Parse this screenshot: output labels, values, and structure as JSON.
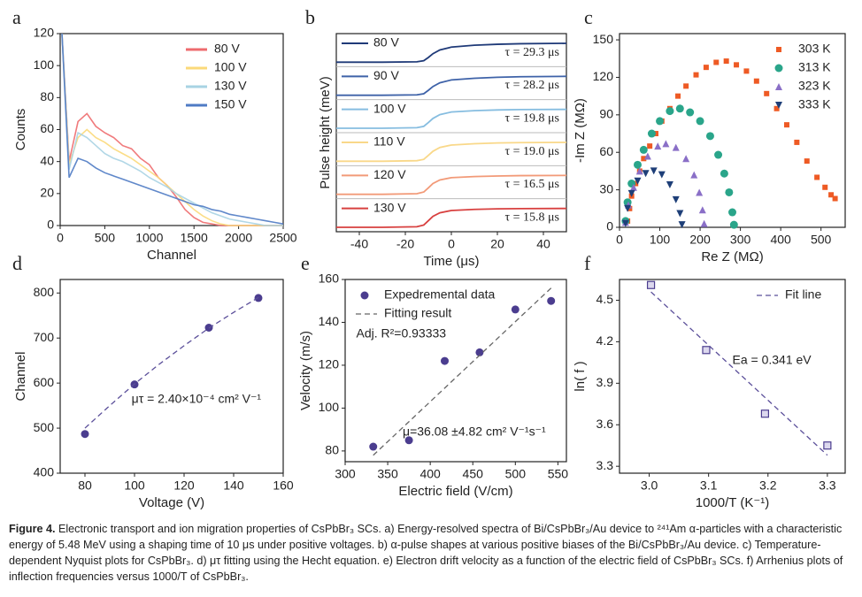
{
  "chart_data": [
    {
      "type": "line",
      "panel": "a",
      "xlabel": "Channel",
      "ylabel": "Counts",
      "x": [
        20,
        100,
        200,
        300,
        400,
        500,
        600,
        700,
        800,
        900,
        1000,
        1100,
        1200,
        1300,
        1400,
        1500,
        1600,
        1700,
        1800,
        1900,
        2000,
        2100,
        2200,
        2300,
        2400,
        2500
      ],
      "xlim": [
        0,
        2500
      ],
      "xticks": [
        0,
        500,
        1000,
        1500,
        2000,
        2500
      ],
      "ylim": [
        0,
        120
      ],
      "yticks": [
        0,
        20,
        40,
        60,
        80,
        100,
        120
      ],
      "legend": "upper right",
      "series": [
        {
          "name": "80 V",
          "color": "#ee6b6e",
          "values": [
            120,
            40,
            65,
            70,
            62,
            58,
            55,
            50,
            48,
            42,
            38,
            30,
            25,
            18,
            10,
            5,
            2,
            1,
            0,
            0,
            0,
            0,
            0,
            0,
            0,
            0
          ]
        },
        {
          "name": "100 V",
          "color": "#fbd97a",
          "values": [
            120,
            38,
            55,
            60,
            55,
            52,
            48,
            45,
            42,
            38,
            34,
            30,
            25,
            20,
            15,
            10,
            6,
            3,
            1,
            0,
            0,
            0,
            0,
            0,
            0,
            0
          ]
        },
        {
          "name": "130 V",
          "color": "#a8d3e3",
          "values": [
            120,
            35,
            58,
            55,
            50,
            45,
            42,
            40,
            37,
            34,
            30,
            27,
            24,
            20,
            17,
            14,
            11,
            8,
            6,
            4,
            3,
            2,
            1,
            0,
            0,
            0
          ]
        },
        {
          "name": "150 V",
          "color": "#4f7bc4",
          "values": [
            120,
            30,
            42,
            40,
            36,
            33,
            31,
            29,
            27,
            25,
            23,
            21,
            19,
            17,
            15,
            13,
            12,
            10,
            9,
            7,
            6,
            5,
            4,
            3,
            2,
            1
          ]
        }
      ]
    },
    {
      "type": "stacked",
      "panel": "b",
      "xlabel": "Time (μs)",
      "ylabel": "Pulse height (meV)",
      "x": [
        -50,
        -30,
        -15,
        -12,
        -10,
        -8,
        -5,
        0,
        10,
        20,
        30,
        50
      ],
      "xlim": [
        -50,
        50
      ],
      "xticks": [
        -40,
        -20,
        0,
        20,
        40
      ],
      "series": [
        {
          "name": "80 V",
          "label": "τ = 29.3 μs",
          "color": "#1f3a78",
          "values": [
            0,
            0,
            0.02,
            0.08,
            0.25,
            0.45,
            0.65,
            0.8,
            0.9,
            0.95,
            0.98,
            1
          ]
        },
        {
          "name": "90 V",
          "label": "τ = 28.2 μs",
          "color": "#3e62a8",
          "values": [
            0,
            0,
            0.02,
            0.08,
            0.26,
            0.46,
            0.66,
            0.81,
            0.9,
            0.95,
            0.98,
            1
          ]
        },
        {
          "name": "100 V",
          "label": "τ = 19.8 μs",
          "color": "#86bde0",
          "values": [
            0,
            0,
            0.03,
            0.1,
            0.3,
            0.52,
            0.72,
            0.86,
            0.93,
            0.97,
            0.99,
            1
          ]
        },
        {
          "name": "110 V",
          "label": "τ = 19.0 μs",
          "color": "#f9d889",
          "values": [
            0,
            0,
            0.03,
            0.1,
            0.31,
            0.53,
            0.73,
            0.86,
            0.93,
            0.97,
            0.99,
            1
          ]
        },
        {
          "name": "120 V",
          "label": "τ = 16.5 μs",
          "color": "#f29a78",
          "values": [
            0,
            0,
            0.03,
            0.12,
            0.34,
            0.57,
            0.76,
            0.88,
            0.94,
            0.97,
            0.99,
            1
          ]
        },
        {
          "name": "130 V",
          "label": "τ = 15.8 μs",
          "color": "#d8403f",
          "values": [
            0,
            0,
            0.03,
            0.12,
            0.35,
            0.58,
            0.77,
            0.89,
            0.95,
            0.98,
            0.99,
            1
          ]
        }
      ]
    },
    {
      "type": "scatter",
      "panel": "c",
      "xlabel": "Re Z (MΩ)",
      "ylabel": "-Im Z (MΩ)",
      "xlim": [
        0,
        560
      ],
      "xticks": [
        0,
        100,
        200,
        300,
        400,
        500
      ],
      "ylim": [
        0,
        155
      ],
      "yticks": [
        0,
        30,
        60,
        90,
        120,
        150
      ],
      "legend": "upper right",
      "series": [
        {
          "name": "303 K",
          "color": "#ee5a24",
          "marker": "square",
          "x": [
            20,
            25,
            30,
            40,
            50,
            60,
            75,
            90,
            105,
            125,
            145,
            165,
            190,
            215,
            240,
            265,
            290,
            315,
            340,
            365,
            390,
            415,
            440,
            465,
            490,
            510,
            525,
            535
          ],
          "values": [
            5,
            15,
            25,
            35,
            45,
            55,
            65,
            75,
            85,
            95,
            105,
            113,
            122,
            128,
            132,
            133,
            130,
            125,
            117,
            107,
            95,
            82,
            68,
            53,
            40,
            32,
            26,
            23
          ]
        },
        {
          "name": "313 K",
          "color": "#2aa58a",
          "marker": "circle",
          "x": [
            15,
            20,
            30,
            45,
            60,
            80,
            100,
            125,
            150,
            175,
            200,
            225,
            245,
            260,
            272,
            280,
            284
          ],
          "values": [
            5,
            20,
            35,
            50,
            62,
            75,
            85,
            93,
            95,
            92,
            85,
            73,
            58,
            43,
            28,
            12,
            2
          ]
        },
        {
          "name": "323 K",
          "color": "#8a6fc7",
          "marker": "triangle",
          "x": [
            15,
            22,
            35,
            50,
            70,
            95,
            115,
            140,
            165,
            185,
            198,
            206,
            210
          ],
          "values": [
            4,
            18,
            32,
            45,
            57,
            65,
            67,
            64,
            55,
            42,
            28,
            14,
            3
          ]
        },
        {
          "name": "333 K",
          "color": "#1e3f78",
          "marker": "triangle-down",
          "x": [
            15,
            20,
            30,
            45,
            65,
            85,
            105,
            125,
            140,
            150,
            155
          ],
          "values": [
            3,
            15,
            27,
            37,
            43,
            45,
            42,
            34,
            22,
            11,
            2
          ]
        }
      ]
    },
    {
      "type": "scatter",
      "panel": "d",
      "xlabel": "Voltage (V)",
      "ylabel": "Channel",
      "xlim": [
        70,
        160
      ],
      "xticks": [
        80,
        100,
        120,
        140,
        160
      ],
      "ylim": [
        400,
        830
      ],
      "yticks": [
        400,
        500,
        600,
        700,
        800
      ],
      "annotations": [
        "μτ = 2.40×10⁻⁴ cm² V⁻¹"
      ],
      "series": [
        {
          "color": "#4b3d8f",
          "marker": "circle",
          "x": [
            80,
            100,
            130,
            150
          ],
          "values": [
            487,
            597,
            723,
            789
          ]
        },
        {
          "color": "#5b4f9a",
          "line": "dashed",
          "x": [
            80,
            90,
            100,
            110,
            120,
            130,
            140,
            150
          ],
          "values": [
            500,
            550,
            598,
            642,
            683,
            722,
            757,
            790
          ]
        }
      ]
    },
    {
      "type": "scatter",
      "panel": "e",
      "xlabel": "Electric field (V/cm)",
      "ylabel": "Velocity (m/s)",
      "xlim": [
        300,
        560
      ],
      "xticks": [
        300,
        350,
        400,
        450,
        500,
        550
      ],
      "ylim": [
        75,
        160
      ],
      "yticks": [
        80,
        100,
        120,
        140,
        160
      ],
      "legend": "upper left",
      "annotations": [
        "Adj. R²=0.93333",
        "μ=36.08 ±4.82 cm² V⁻¹s⁻¹"
      ],
      "series": [
        {
          "name": "Expedremental data",
          "color": "#4b3d8f",
          "marker": "circle",
          "x": [
            333,
            375,
            417,
            458,
            500,
            542
          ],
          "values": [
            82,
            85,
            122,
            126,
            146,
            150
          ]
        },
        {
          "name": "Fitting result",
          "color": "#666666",
          "line": "dashed",
          "x": [
            333,
            542
          ],
          "values": [
            78,
            156
          ]
        }
      ]
    },
    {
      "type": "scatter",
      "panel": "f",
      "xlabel": "1000/T (K⁻¹)",
      "ylabel": "ln( f )",
      "xlim": [
        2.95,
        3.33
      ],
      "xticks": [
        {
          "value": 3,
          "label": "3.0"
        },
        3.1,
        3.2,
        3.3
      ],
      "ylim": [
        3.25,
        4.65
      ],
      "yticks": [
        3.3,
        3.6,
        3.9,
        4.2,
        4.5
      ],
      "legend": "upper right",
      "annotations": [
        "Ea = 0.341 eV"
      ],
      "series": [
        {
          "color": "#4b3d8f",
          "marker": "square-open",
          "x": [
            3.003,
            3.096,
            3.195,
            3.3
          ],
          "values": [
            4.61,
            4.14,
            3.68,
            3.45
          ]
        },
        {
          "name": "Fit line",
          "color": "#5b4f9a",
          "line": "dashed",
          "x": [
            3.003,
            3.3
          ],
          "values": [
            4.56,
            3.38
          ]
        }
      ]
    }
  ],
  "caption": {
    "label": "Figure 4.",
    "text": "Electronic transport and ion migration properties of CsPbBr₃ SCs. a) Energy-resolved spectra of Bi/CsPbBr₃/Au device to ²⁴¹Am α-particles with a characteristic energy of 5.48 MeV using a shaping time of 10 μs under positive voltages. b) α-pulse shapes at various positive biases of the Bi/CsPbBr₃/Au device. c) Temperature-dependent Nyquist plots for CsPbBr₃. d) μτ fitting using the Hecht equation. e) Electron drift velocity as a function of the electric field of CsPbBr₃ SCs. f) Arrhenius plots of inflection frequencies versus 1000/T of CsPbBr₃."
  }
}
